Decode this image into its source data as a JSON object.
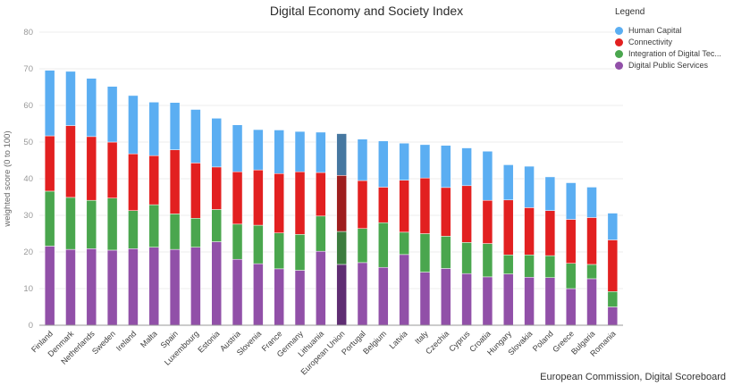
{
  "title": "Digital Economy and Society Index",
  "footer": "European Commission, Digital Scoreboard",
  "legend": {
    "title": "Legend",
    "items": [
      {
        "label": "Human Capital",
        "color": "#5baef2"
      },
      {
        "label": "Connectivity",
        "color": "#e22020"
      },
      {
        "label": "Integration of Digital Tec...",
        "color": "#4aa64e"
      },
      {
        "label": "Digital Public Services",
        "color": "#9150a8"
      }
    ]
  },
  "colors": {
    "background": "#ffffff",
    "grid": "#ededed",
    "axis": "#999999",
    "tick_label": "#999999",
    "x_label": "#3d3d3d",
    "y_title": "#666666"
  },
  "chart_data": {
    "type": "bar",
    "stacked": true,
    "title": "Digital Economy and Society Index",
    "xlabel": "",
    "ylabel": "weighted score (0 to 100)",
    "ylim": [
      0,
      80
    ],
    "yticks": [
      0,
      10,
      20,
      30,
      40,
      50,
      60,
      70,
      80
    ],
    "grid": true,
    "legend_position": "right",
    "stack_order_bottom_to_top": [
      "Digital Public Services",
      "Integration of Digital Tec...",
      "Connectivity",
      "Human Capital"
    ],
    "categories": [
      "Finland",
      "Denmark",
      "Netherlands",
      "Sweden",
      "Ireland",
      "Malta",
      "Spain",
      "Luxembourg",
      "Estonia",
      "Austria",
      "Slovenia",
      "France",
      "Germany",
      "Lithuania",
      "European Union",
      "Portugal",
      "Belgium",
      "Latvia",
      "Italy",
      "Czechia",
      "Cyprus",
      "Croatia",
      "Hungary",
      "Slovakia",
      "Poland",
      "Greece",
      "Bulgaria",
      "Romania"
    ],
    "series": [
      {
        "name": "Human Capital",
        "key": "hc",
        "color": "#5baef2",
        "values": [
          17.9,
          14.8,
          15.9,
          15.2,
          15.9,
          14.6,
          12.9,
          14.6,
          13.3,
          12.8,
          11.0,
          11.9,
          11.0,
          11.0,
          11.4,
          11.3,
          12.6,
          10.1,
          9.1,
          11.5,
          10.3,
          13.4,
          9.6,
          11.3,
          9.2,
          10.0,
          8.3,
          7.3
        ]
      },
      {
        "name": "Connectivity",
        "key": "conn",
        "color": "#e22020",
        "values": [
          15.1,
          19.6,
          17.4,
          15.3,
          15.5,
          13.4,
          17.5,
          15.1,
          11.6,
          14.3,
          15.1,
          16.2,
          17.1,
          11.9,
          15.3,
          13.1,
          9.7,
          14.2,
          15.2,
          13.3,
          15.5,
          11.8,
          15.0,
          12.9,
          12.3,
          12.0,
          12.8,
          14.1
        ]
      },
      {
        "name": "Integration of Digital Tec...",
        "key": "idt",
        "color": "#4aa64e",
        "values": [
          15.0,
          14.2,
          13.2,
          14.2,
          10.4,
          11.6,
          9.7,
          7.9,
          8.8,
          9.6,
          10.5,
          9.8,
          9.8,
          9.6,
          9.0,
          9.3,
          12.2,
          6.1,
          10.5,
          8.8,
          8.5,
          9.1,
          5.2,
          6.1,
          6.0,
          6.9,
          3.9,
          4.2
        ]
      },
      {
        "name": "Digital Public Services",
        "key": "dps",
        "color": "#9150a8",
        "values": [
          21.6,
          20.7,
          20.9,
          20.5,
          20.9,
          21.3,
          20.7,
          21.3,
          22.8,
          18.0,
          16.8,
          15.4,
          15.0,
          20.2,
          16.6,
          17.1,
          15.8,
          19.3,
          14.5,
          15.5,
          14.1,
          13.2,
          14.0,
          13.1,
          13.0,
          10.0,
          12.7,
          5.0
        ]
      }
    ],
    "totals": [
      69.6,
      69.3,
      67.4,
      65.2,
      62.7,
      60.9,
      60.8,
      58.9,
      56.5,
      54.7,
      53.4,
      53.3,
      52.9,
      52.7,
      52.3,
      50.8,
      50.3,
      49.7,
      49.3,
      49.1,
      48.4,
      47.5,
      43.8,
      43.4,
      40.5,
      38.9,
      37.7,
      30.6
    ],
    "highlight": {
      "category": "European Union",
      "colors": {
        "hc": "#4677a0",
        "conn": "#9e1e1e",
        "idt": "#3c7c3e",
        "dps": "#5f2d73"
      }
    }
  }
}
